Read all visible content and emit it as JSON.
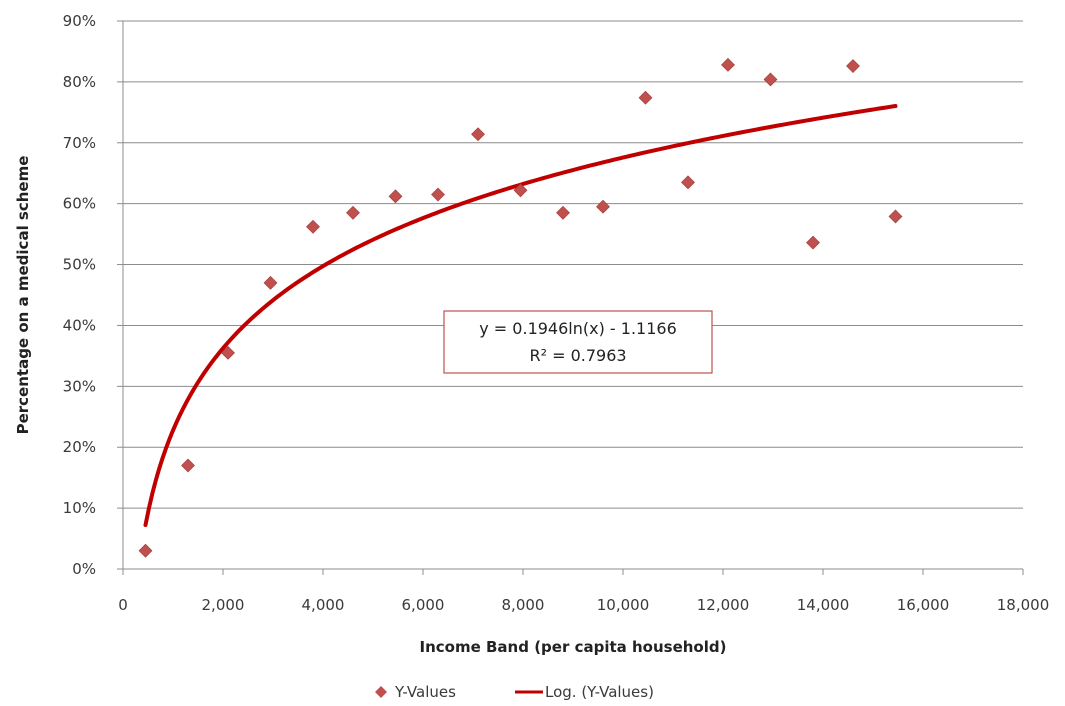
{
  "chart_data": {
    "type": "scatter",
    "xlabel": "Income Band (per capita household)",
    "ylabel": "Percentage on a medical scheme",
    "xlim": [
      0,
      18000
    ],
    "ylim": [
      0,
      0.9
    ],
    "x_ticks": [
      "0",
      "2,000",
      "4,000",
      "6,000",
      "8,000",
      "10,000",
      "12,000",
      "14,000",
      "16,000",
      "18,000"
    ],
    "y_ticks": [
      "0%",
      "10%",
      "20%",
      "30%",
      "40%",
      "50%",
      "60%",
      "70%",
      "80%",
      "90%"
    ],
    "grid": "horizontal",
    "legend_position": "bottom",
    "series": [
      {
        "name": "Y-Values",
        "marker": "diamond",
        "color": "#c0504d",
        "points": [
          {
            "x": 450,
            "y": 0.03
          },
          {
            "x": 1300,
            "y": 0.17
          },
          {
            "x": 2100,
            "y": 0.355
          },
          {
            "x": 2950,
            "y": 0.47
          },
          {
            "x": 3800,
            "y": 0.562
          },
          {
            "x": 4600,
            "y": 0.585
          },
          {
            "x": 5450,
            "y": 0.612
          },
          {
            "x": 6300,
            "y": 0.615
          },
          {
            "x": 7100,
            "y": 0.714
          },
          {
            "x": 7950,
            "y": 0.622
          },
          {
            "x": 8800,
            "y": 0.585
          },
          {
            "x": 9600,
            "y": 0.595
          },
          {
            "x": 10450,
            "y": 0.774
          },
          {
            "x": 11300,
            "y": 0.635
          },
          {
            "x": 12100,
            "y": 0.828
          },
          {
            "x": 12950,
            "y": 0.804
          },
          {
            "x": 13800,
            "y": 0.536
          },
          {
            "x": 14600,
            "y": 0.826
          },
          {
            "x": 15450,
            "y": 0.579
          }
        ]
      },
      {
        "name": "Log. (Y-Values)",
        "type": "trendline",
        "color": "#c00000",
        "model": "logarithmic",
        "a": 0.1946,
        "b": -1.1166,
        "x_start": 450,
        "x_end": 15450
      }
    ],
    "annotations": {
      "equation": "y = 0.1946ln(x) - 1.1166",
      "r_squared": "R² = 0.7963"
    }
  }
}
